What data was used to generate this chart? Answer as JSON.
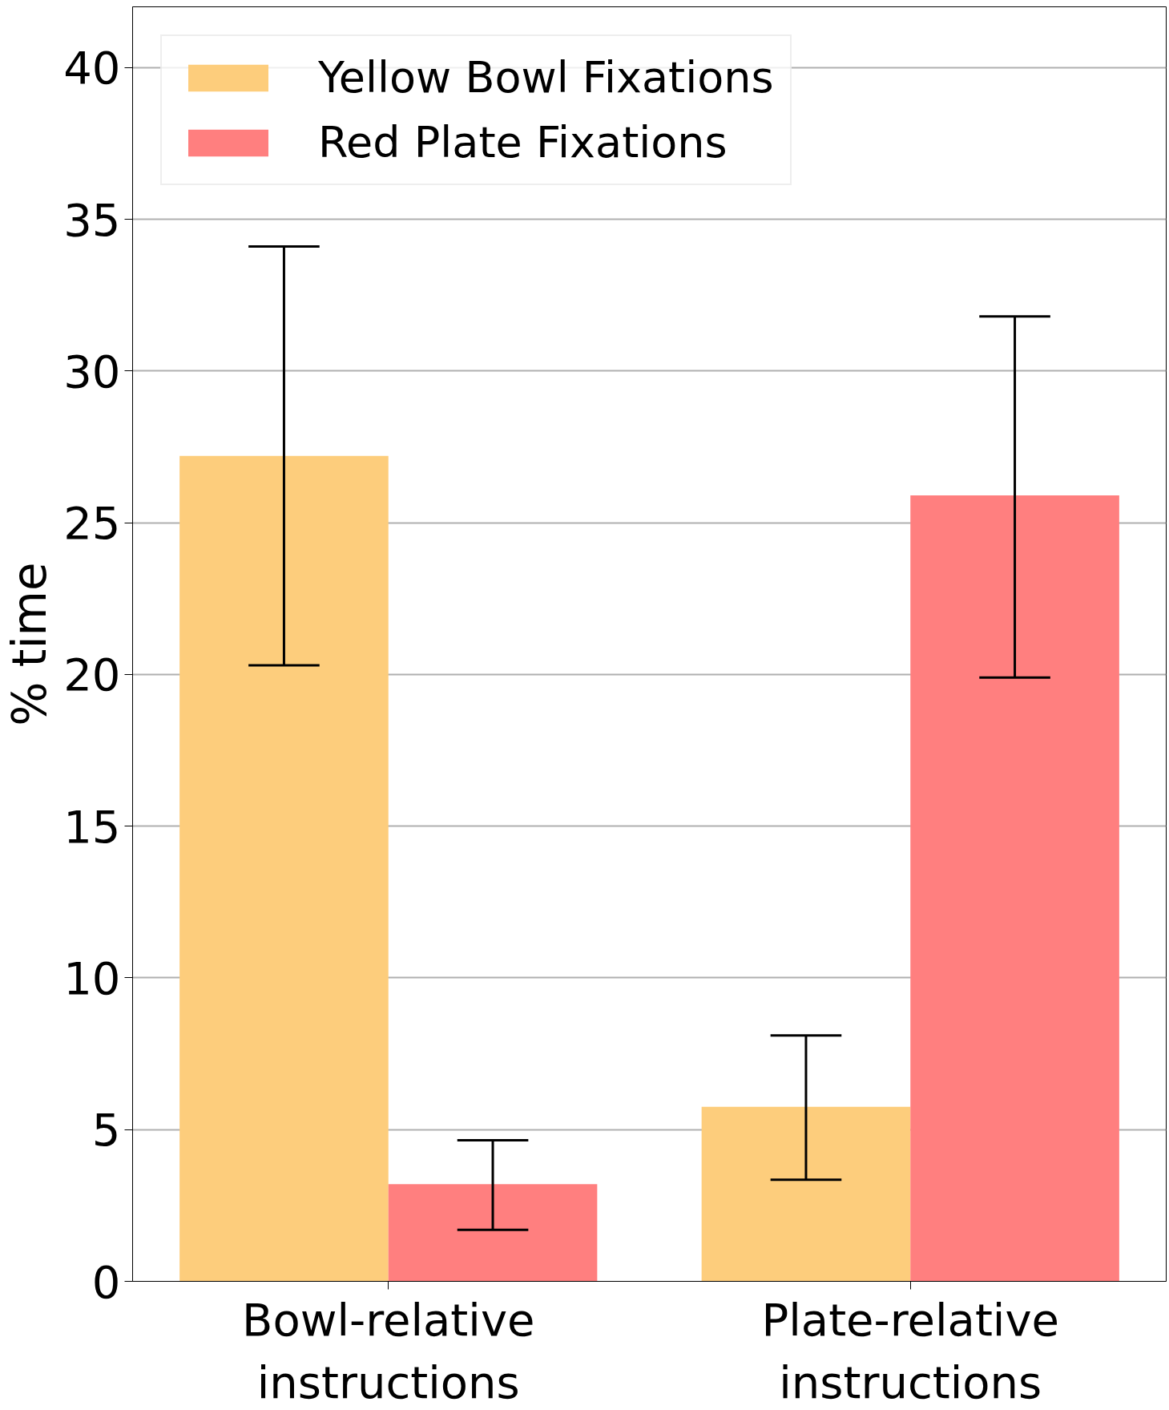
{
  "chart_data": {
    "type": "bar",
    "ylabel": "% time",
    "categories": [
      "Bowl-relative\ninstructions",
      "Plate-relative\ninstructions"
    ],
    "series": [
      {
        "name": "Yellow Bowl Fixations",
        "color": "#fdcd7c",
        "values": [
          27.2,
          5.75
        ],
        "errors": [
          [
            20.3,
            34.1
          ],
          [
            3.35,
            8.1
          ]
        ]
      },
      {
        "name": "Red Plate Fixations",
        "color": "#ff7f7f",
        "values": [
          3.2,
          25.9
        ],
        "errors": [
          [
            1.7,
            4.65
          ],
          [
            19.9,
            31.8
          ]
        ]
      }
    ],
    "ylim": [
      0,
      42
    ],
    "yticks": [
      0,
      5,
      10,
      15,
      20,
      25,
      30,
      35,
      40
    ],
    "grid": "y",
    "legend": "top left"
  }
}
